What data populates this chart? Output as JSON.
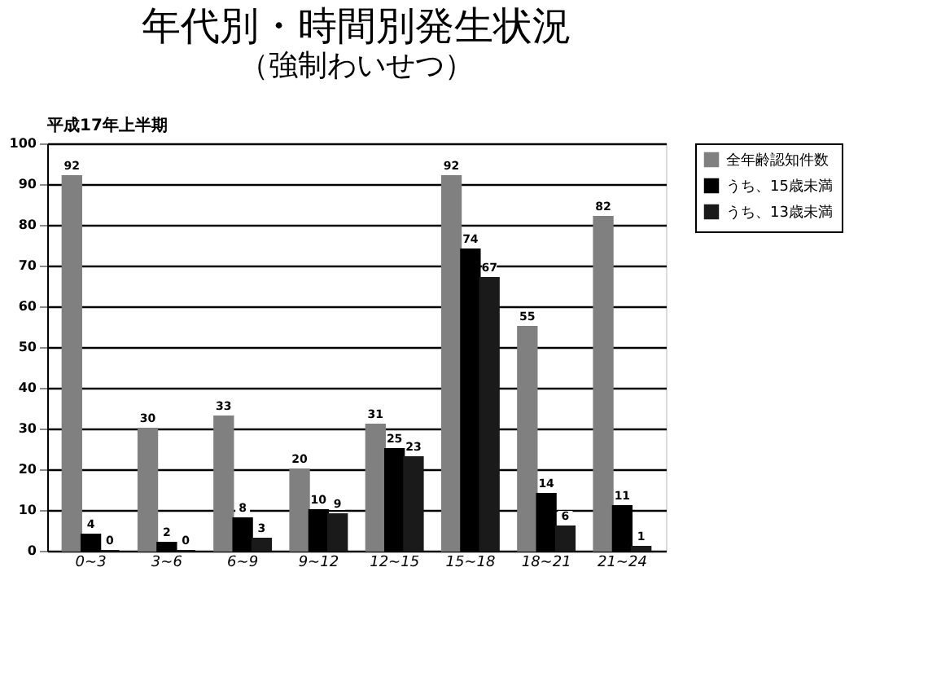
{
  "chart_data": {
    "type": "bar",
    "title": "年代別・時間別発生状況",
    "subtitle": "（強制わいせつ）",
    "annotations": [
      "平成17年上半期"
    ],
    "categories": [
      "0~3",
      "3~6",
      "6~9",
      "9~12",
      "12~15",
      "15~18",
      "18~21",
      "21~24"
    ],
    "series": [
      {
        "name": "全年齢認知件数",
        "color": "#808080",
        "values": [
          92,
          30,
          33,
          20,
          31,
          92,
          55,
          82
        ]
      },
      {
        "name": "うち、15歳未満",
        "color": "#000000",
        "values": [
          4,
          2,
          8,
          10,
          25,
          74,
          14,
          11
        ]
      },
      {
        "name": "うち、13歳未満",
        "color": "#1a1a1a",
        "values": [
          0,
          0,
          3,
          9,
          23,
          67,
          6,
          1
        ]
      }
    ],
    "ylim": [
      0,
      100
    ],
    "yticks": [
      0,
      10,
      20,
      30,
      40,
      50,
      60,
      70,
      80,
      90,
      100
    ],
    "grid": "y",
    "legend": "right",
    "data_labels": true
  }
}
